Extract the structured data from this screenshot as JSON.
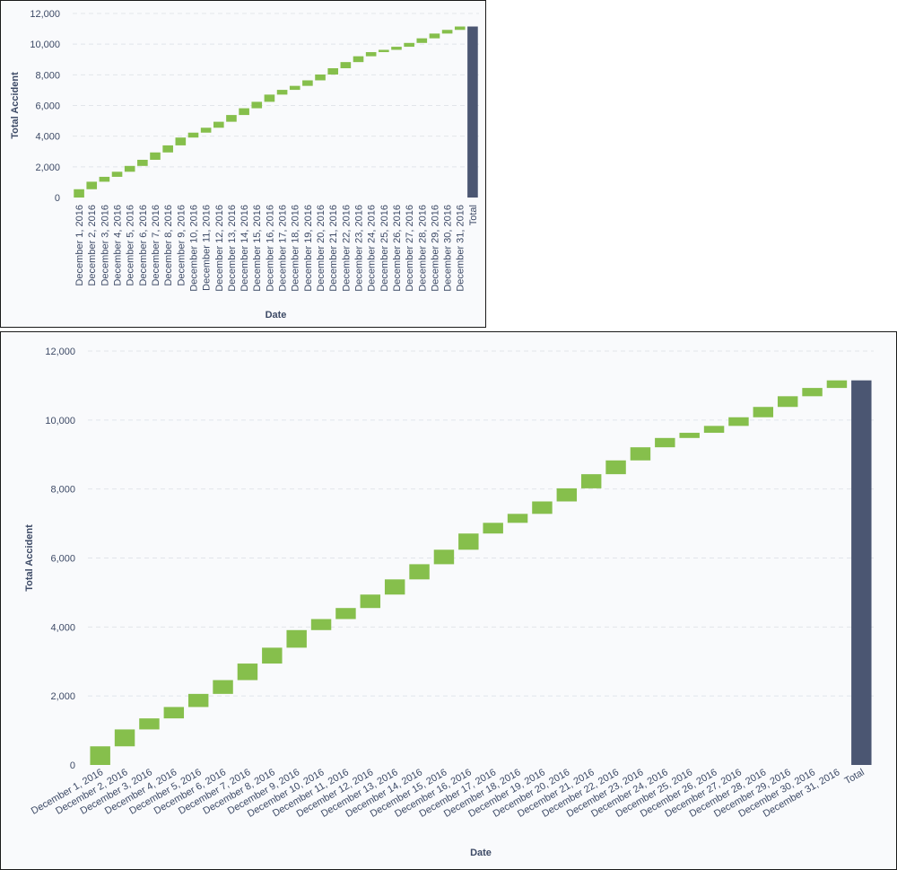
{
  "chart_data": [
    {
      "type": "waterfall",
      "title": "",
      "xlabel": "Date",
      "ylabel": "Total Accident",
      "ylim": [
        0,
        12000
      ],
      "yticks": [
        0,
        2000,
        4000,
        6000,
        8000,
        10000,
        12000
      ],
      "ytick_labels": [
        "0",
        "2,000",
        "4,000",
        "6,000",
        "8,000",
        "10,000",
        "12,000"
      ],
      "grid": true,
      "legend": "none",
      "x_label_rotation": "vertical",
      "increase_color": "#86bf4c",
      "total_color": "#4b5672",
      "categories": [
        "December 1, 2016",
        "December 2, 2016",
        "December 3, 2016",
        "December 4, 2016",
        "December 5, 2016",
        "December 6, 2016",
        "December 7, 2016",
        "December 8, 2016",
        "December 9, 2016",
        "December 10, 2016",
        "December 11, 2016",
        "December 12, 2016",
        "December 13, 2016",
        "December 14, 2016",
        "December 15, 2016",
        "December 16, 2016",
        "December 17, 2016",
        "December 18, 2016",
        "December 19, 2016",
        "December 20, 2016",
        "December 21, 2016",
        "December 22, 2016",
        "December 23, 2016",
        "December 24, 2016",
        "December 25, 2016",
        "December 26, 2016",
        "December 27, 2016",
        "December 28, 2016",
        "December 29, 2016",
        "December 30, 2016",
        "December 31, 2016"
      ],
      "values": [
        540,
        490,
        320,
        330,
        380,
        400,
        480,
        460,
        510,
        320,
        320,
        390,
        440,
        440,
        420,
        470,
        310,
        260,
        360,
        380,
        410,
        400,
        380,
        270,
        150,
        200,
        250,
        300,
        310,
        240,
        220
      ],
      "total_label": "Total",
      "total": 11150
    },
    {
      "type": "waterfall",
      "title": "",
      "xlabel": "Date",
      "ylabel": "Total Accident",
      "ylim": [
        0,
        12000
      ],
      "yticks": [
        0,
        2000,
        4000,
        6000,
        8000,
        10000,
        12000
      ],
      "ytick_labels": [
        "0",
        "2,000",
        "4,000",
        "6,000",
        "8,000",
        "10,000",
        "12,000"
      ],
      "grid": true,
      "legend": "none",
      "x_label_rotation": "diagonal",
      "increase_color": "#86bf4c",
      "total_color": "#4b5672",
      "categories": [
        "December 1, 2016",
        "December 2, 2016",
        "December 3, 2016",
        "December 4, 2016",
        "December 5, 2016",
        "December 6, 2016",
        "December 7, 2016",
        "December 8, 2016",
        "December 9, 2016",
        "December 10, 2016",
        "December 11, 2016",
        "December 12, 2016",
        "December 13, 2016",
        "December 14, 2016",
        "December 15, 2016",
        "December 16, 2016",
        "December 17, 2016",
        "December 18, 2016",
        "December 19, 2016",
        "December 20, 2016",
        "December 21, 2016",
        "December 22, 2016",
        "December 23, 2016",
        "December 24, 2016",
        "December 25, 2016",
        "December 26, 2016",
        "December 27, 2016",
        "December 28, 2016",
        "December 29, 2016",
        "December 30, 2016",
        "December 31, 2016"
      ],
      "values": [
        540,
        490,
        320,
        330,
        380,
        400,
        480,
        460,
        510,
        320,
        320,
        390,
        440,
        440,
        420,
        470,
        310,
        260,
        360,
        380,
        410,
        400,
        380,
        270,
        150,
        200,
        250,
        300,
        310,
        240,
        220
      ],
      "total_label": "Total",
      "total": 11150
    }
  ]
}
